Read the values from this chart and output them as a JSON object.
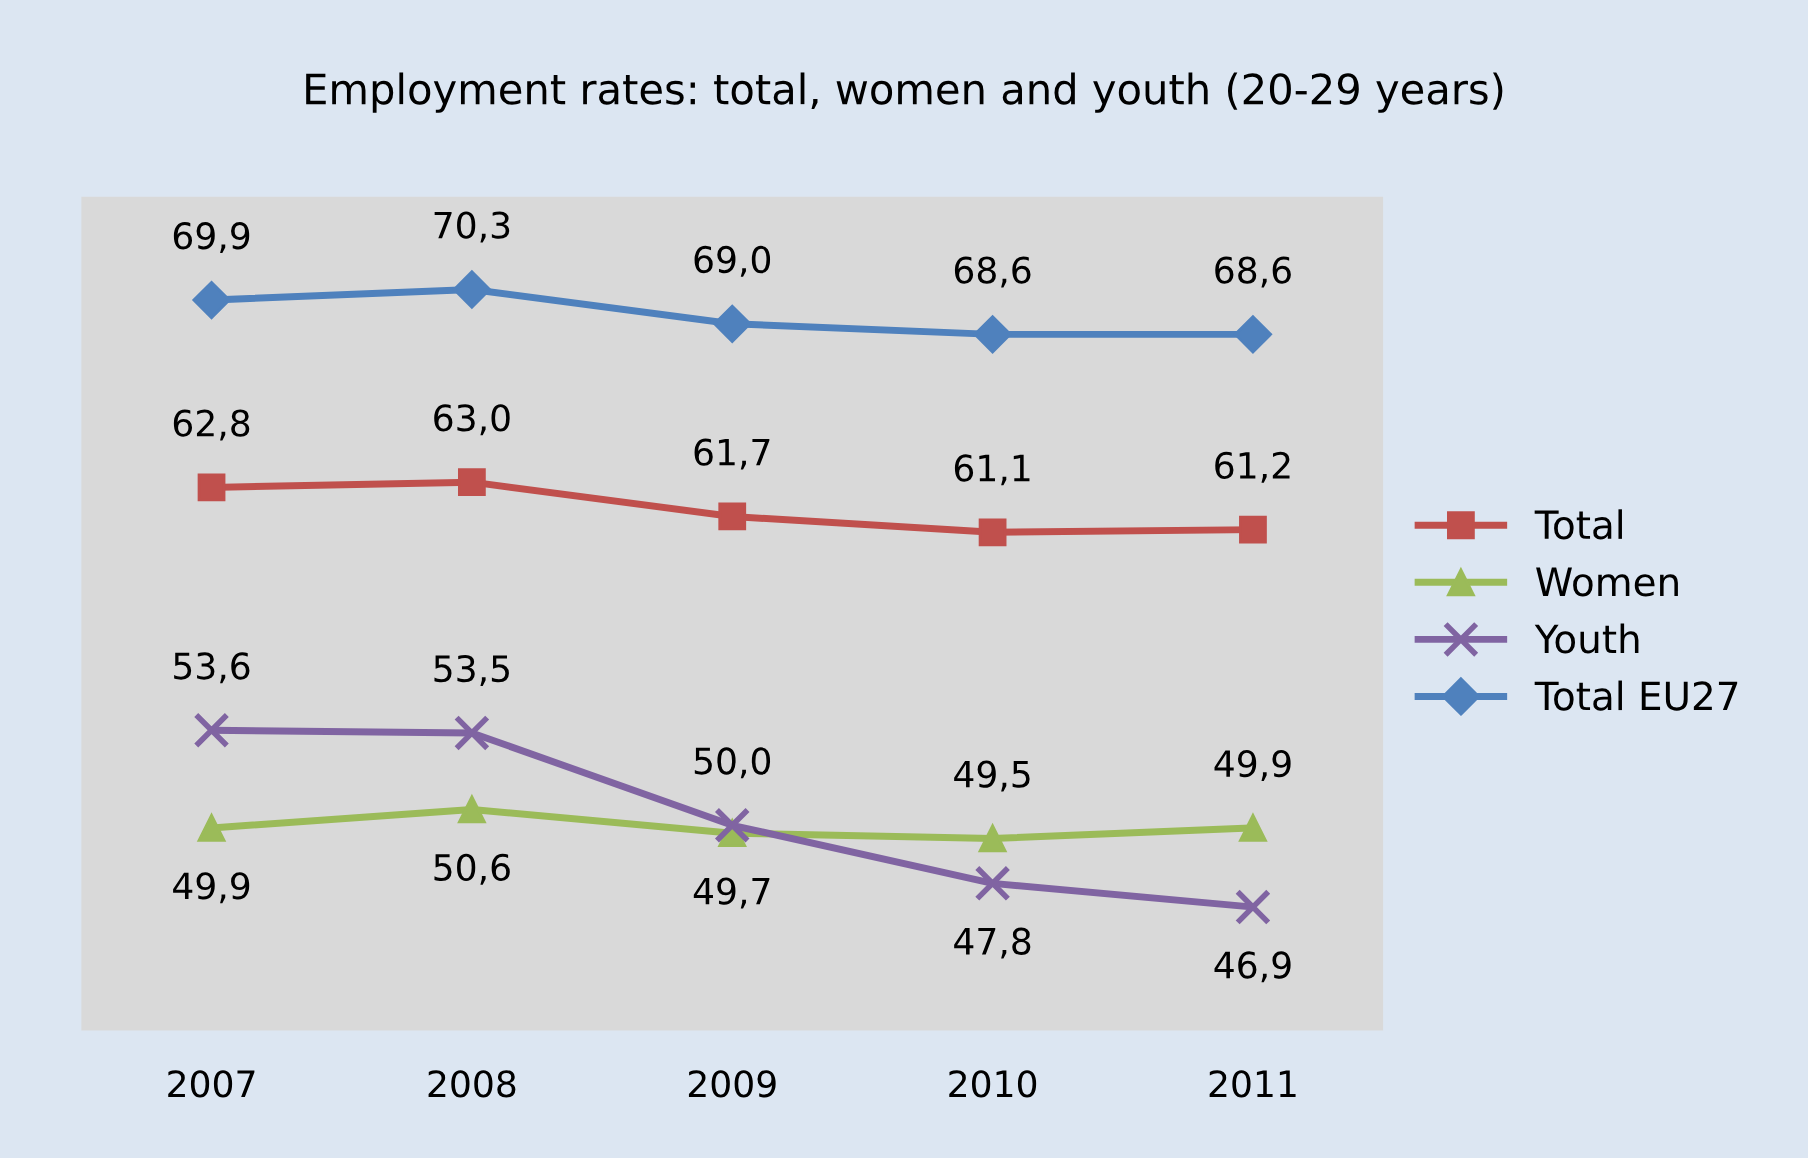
{
  "chart_data": {
    "type": "line",
    "title": "Employment rates: total, women and youth (20-29 years)",
    "categories": [
      "2007",
      "2008",
      "2009",
      "2010",
      "2011"
    ],
    "series": [
      {
        "name": "Total",
        "color": "#c0504d",
        "marker": "square",
        "values": [
          62.8,
          63.0,
          61.7,
          61.1,
          61.2
        ],
        "value_labels": [
          "62,8",
          "63,0",
          "61,7",
          "61,1",
          "61,2"
        ]
      },
      {
        "name": "Women",
        "color": "#9bbb59",
        "marker": "triangle",
        "values": [
          49.9,
          50.6,
          49.7,
          49.5,
          49.9
        ],
        "value_labels": [
          "49,9",
          "50,6",
          "49,7",
          "49,5",
          "49,9"
        ]
      },
      {
        "name": "Youth",
        "color": "#8064a2",
        "marker": "cross",
        "values": [
          53.6,
          53.5,
          50.0,
          47.8,
          46.9
        ],
        "value_labels": [
          "53,6",
          "53,5",
          "50,0",
          "47,8",
          "46,9"
        ]
      },
      {
        "name": "Total EU27",
        "color": "#4f81bd",
        "marker": "diamond",
        "values": [
          69.9,
          70.3,
          69.0,
          68.6,
          68.6
        ],
        "value_labels": [
          "69,9",
          "70,3",
          "69,0",
          "68,6",
          "68,6"
        ]
      }
    ],
    "grid": false,
    "legend": "right",
    "line_style": "solid"
  }
}
